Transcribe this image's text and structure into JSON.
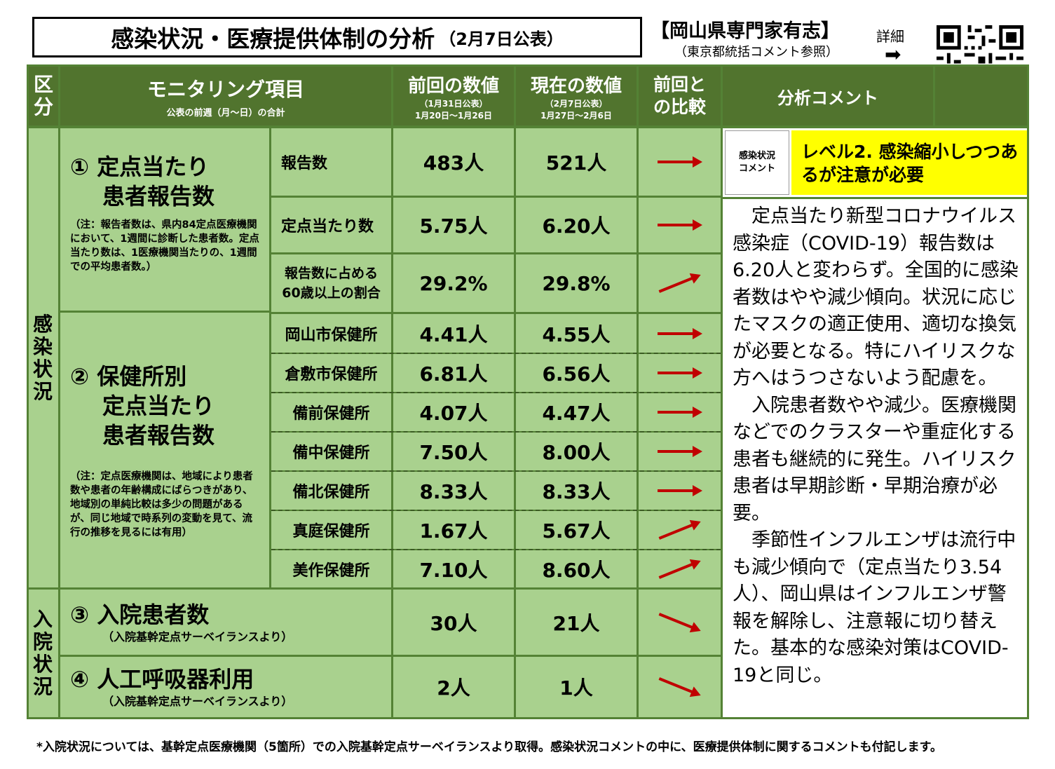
{
  "header": {
    "title": "感染状況・医療提供体制の分析",
    "title_sub": "（2月7日公表）",
    "org": "【岡山県専門家有志】",
    "org_note": "（東京都統括コメント参照）",
    "detail": "詳細"
  },
  "table_header": {
    "category": "区分",
    "item": "モニタリング項目",
    "item_sub": "公表の前週（月～日）の合計",
    "prev": "前回の数値",
    "prev_sub1": "（1月31日公表）",
    "prev_sub2": "1月20日～1月26日",
    "curr": "現在の数値",
    "curr_sub1": "（2月7日公表）",
    "curr_sub2": "1月27日～2月6日",
    "compare": "前回との比較",
    "comment": "分析コメント"
  },
  "categories": {
    "infection": "感染状況",
    "hospital": "入院状況"
  },
  "groups": {
    "g1_title1": "① 定点当たり",
    "g1_title2": "患者報告数",
    "g1_note": "（注：報告者数は、県内84定点医療機関において、1週間に診断した患者数。定点当たり数は、1医療機関当たりの、1週間での平均患者数。）",
    "g2_title1": "② 保健所別",
    "g2_title2": "定点当たり",
    "g2_title3": "患者報告数",
    "g2_note": "（注：定点医療機関は、地域により患者数や患者の年齢構成にばらつきがあり、地域別の単純比較は多少の問題があるが、同じ地域で時系列の変動を見て、流行の推移を見るには有用）",
    "g3_title": "③ 入院患者数",
    "g3_sub": "（入院基幹定点サーベイランスより）",
    "g4_title": "④ 人工呼吸器利用",
    "g4_sub": "（入院基幹定点サーベイランスより）"
  },
  "rows": [
    {
      "label": "報告数",
      "prev": "483人",
      "curr": "521人",
      "trend": "flat"
    },
    {
      "label": "定点当たり数",
      "prev": "5.75人",
      "curr": "6.20人",
      "trend": "flat"
    },
    {
      "label": "報告数に占める\n60歳以上の割合",
      "prev": "29.2%",
      "curr": "29.8%",
      "trend": "up"
    },
    {
      "label": "岡山市保健所",
      "prev": "4.41人",
      "curr": "4.55人",
      "trend": "flat"
    },
    {
      "label": "倉敷市保健所",
      "prev": "6.81人",
      "curr": "6.56人",
      "trend": "flat"
    },
    {
      "label": "備前保健所",
      "prev": "4.07人",
      "curr": "4.47人",
      "trend": "flat"
    },
    {
      "label": "備中保健所",
      "prev": "7.50人",
      "curr": "8.00人",
      "trend": "flat"
    },
    {
      "label": "備北保健所",
      "prev": "8.33人",
      "curr": "8.33人",
      "trend": "flat"
    },
    {
      "label": "真庭保健所",
      "prev": "1.67人",
      "curr": "5.67人",
      "trend": "up"
    },
    {
      "label": "美作保健所",
      "prev": "7.10人",
      "curr": "8.60人",
      "trend": "up"
    },
    {
      "label": "",
      "prev": "30人",
      "curr": "21人",
      "trend": "down"
    },
    {
      "label": "",
      "prev": "2人",
      "curr": "1人",
      "trend": "down"
    }
  ],
  "comment": {
    "tag": "感染状況コメント",
    "level": "レベル2. 感染縮小しつつあるが注意が必要",
    "level_bg": "#ffff00",
    "body": "　定点当たり新型コロナウイルス感染症（COVID-19）報告数は6.20人と変わらず。全国的に感染者数はやや減少傾向。状況に応じたマスクの適正使用、適切な換気が必要となる。特にハイリスクな方へはうつさないよう配慮を。\n　入院患者数やや減少。医療機関などでのクラスターや重症化する患者も継続的に発生。ハイリスク患者は早期診断・早期治療が必要。\n　季節性インフルエンザは流行中も減少傾向で（定点当たり3.54人）、岡山県はインフルエンザ警報を解除し、注意報に切り替えた。基本的な感染対策はCOVID-19と同じ。"
  },
  "footer": "*入院状況については、基幹定点医療機関（5箇所）での入院基幹定点サーベイランスより取得。感染状況コメントの中に、医療提供体制に関するコメントも付記します。",
  "colors": {
    "header_green": "#51742e",
    "light_green": "#a9d18e",
    "arrow_red": "#c00000"
  }
}
